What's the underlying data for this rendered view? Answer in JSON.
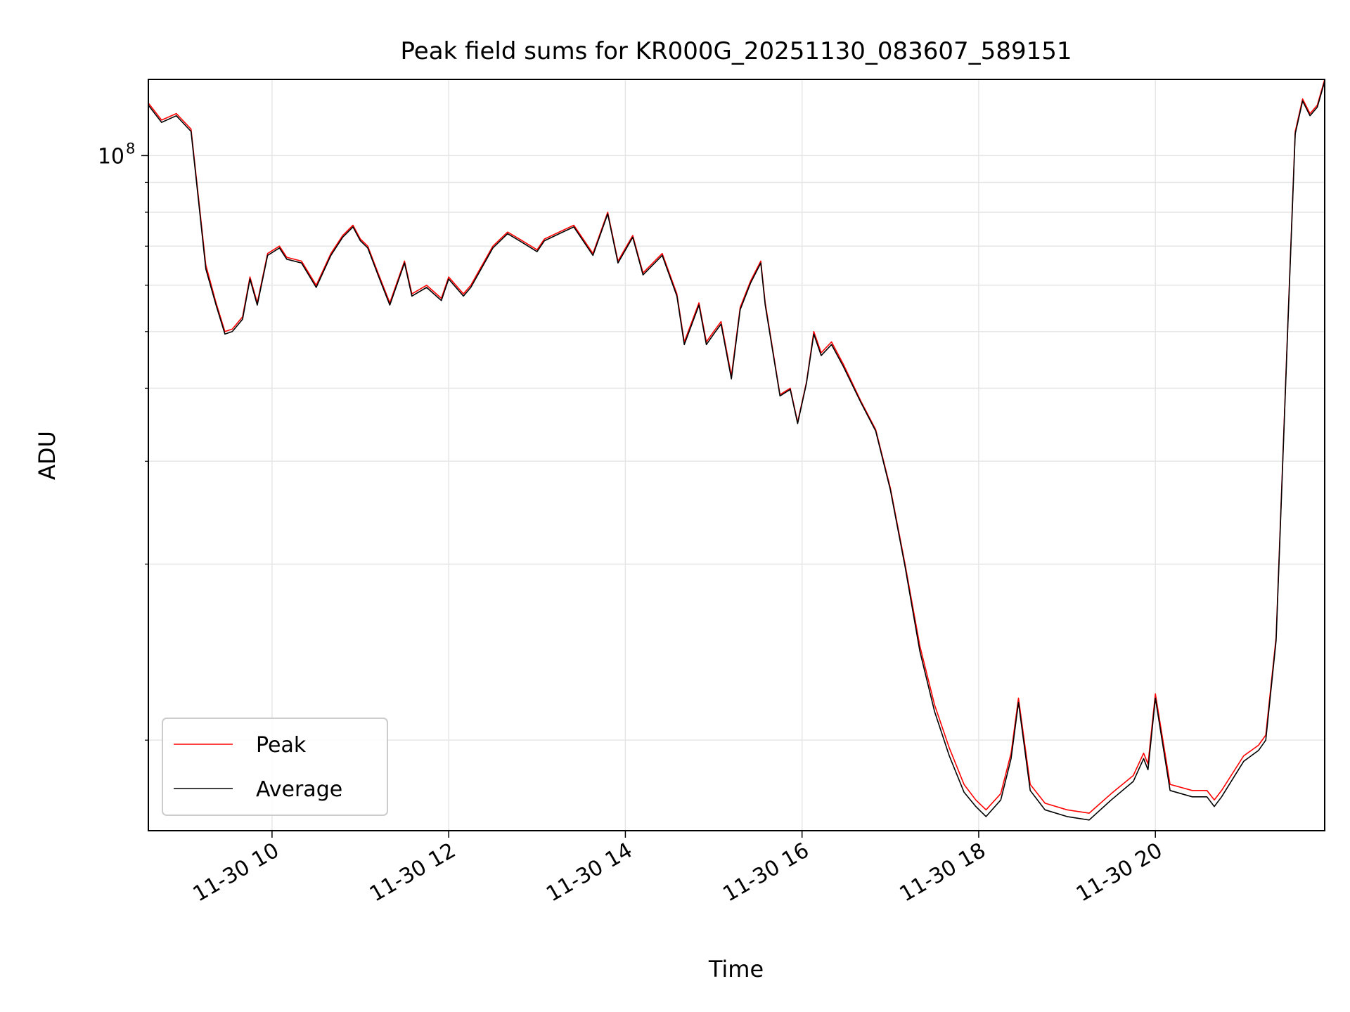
{
  "chart_data": {
    "type": "line",
    "title": "Peak field sums for KR000G_20251130_083607_589151",
    "xlabel": "Time",
    "ylabel": "ADU",
    "y_scale": "log",
    "grid": true,
    "legend_position": "bottom-left",
    "xlim": [
      "2025-11-30 08:36",
      "2025-11-30 21:55"
    ],
    "ylim": [
      7000000,
      135000000
    ],
    "x_ticks": [
      {
        "t": "2025-11-30 10:00",
        "label": "11-30 10"
      },
      {
        "t": "2025-11-30 12:00",
        "label": "11-30 12"
      },
      {
        "t": "2025-11-30 14:00",
        "label": "11-30 14"
      },
      {
        "t": "2025-11-30 16:00",
        "label": "11-30 16"
      },
      {
        "t": "2025-11-30 18:00",
        "label": "11-30 18"
      },
      {
        "t": "2025-11-30 20:00",
        "label": "11-30 20"
      }
    ],
    "y_major_ticks": [
      {
        "value": 100000000,
        "base": "10",
        "exp": "8"
      }
    ],
    "y_minor_ticks": [
      10000000,
      20000000,
      30000000,
      40000000,
      50000000,
      60000000,
      70000000,
      80000000,
      90000000
    ],
    "x": [
      "2025-11-30 08:36",
      "2025-11-30 08:45",
      "2025-11-30 08:55",
      "2025-11-30 09:05",
      "2025-11-30 09:10",
      "2025-11-30 09:15",
      "2025-11-30 09:22",
      "2025-11-30 09:28",
      "2025-11-30 09:33",
      "2025-11-30 09:40",
      "2025-11-30 09:45",
      "2025-11-30 09:50",
      "2025-11-30 09:57",
      "2025-11-30 10:05",
      "2025-11-30 10:10",
      "2025-11-30 10:20",
      "2025-11-30 10:30",
      "2025-11-30 10:40",
      "2025-11-30 10:48",
      "2025-11-30 10:55",
      "2025-11-30 11:00",
      "2025-11-30 11:05",
      "2025-11-30 11:12",
      "2025-11-30 11:20",
      "2025-11-30 11:30",
      "2025-11-30 11:35",
      "2025-11-30 11:45",
      "2025-11-30 11:55",
      "2025-11-30 12:00",
      "2025-11-30 12:10",
      "2025-11-30 12:15",
      "2025-11-30 12:30",
      "2025-11-30 12:40",
      "2025-11-30 12:48",
      "2025-11-30 13:00",
      "2025-11-30 13:05",
      "2025-11-30 13:15",
      "2025-11-30 13:25",
      "2025-11-30 13:38",
      "2025-11-30 13:48",
      "2025-11-30 13:55",
      "2025-11-30 14:05",
      "2025-11-30 14:12",
      "2025-11-30 14:25",
      "2025-11-30 14:35",
      "2025-11-30 14:40",
      "2025-11-30 14:50",
      "2025-11-30 14:55",
      "2025-11-30 15:00",
      "2025-11-30 15:05",
      "2025-11-30 15:12",
      "2025-11-30 15:18",
      "2025-11-30 15:25",
      "2025-11-30 15:32",
      "2025-11-30 15:35",
      "2025-11-30 15:45",
      "2025-11-30 15:52",
      "2025-11-30 15:57",
      "2025-11-30 16:03",
      "2025-11-30 16:08",
      "2025-11-30 16:13",
      "2025-11-30 16:20",
      "2025-11-30 16:28",
      "2025-11-30 16:40",
      "2025-11-30 16:50",
      "2025-11-30 17:00",
      "2025-11-30 17:10",
      "2025-11-30 17:20",
      "2025-11-30 17:30",
      "2025-11-30 17:40",
      "2025-11-30 17:50",
      "2025-11-30 17:58",
      "2025-11-30 18:05",
      "2025-11-30 18:15",
      "2025-11-30 18:22",
      "2025-11-30 18:27",
      "2025-11-30 18:35",
      "2025-11-30 18:45",
      "2025-11-30 19:00",
      "2025-11-30 19:15",
      "2025-11-30 19:30",
      "2025-11-30 19:45",
      "2025-11-30 19:52",
      "2025-11-30 19:55",
      "2025-11-30 20:00",
      "2025-11-30 20:10",
      "2025-11-30 20:25",
      "2025-11-30 20:35",
      "2025-11-30 20:40",
      "2025-11-30 20:45",
      "2025-11-30 21:00",
      "2025-11-30 21:10",
      "2025-11-30 21:15",
      "2025-11-30 21:22",
      "2025-11-30 21:30",
      "2025-11-30 21:35",
      "2025-11-30 21:40",
      "2025-11-30 21:45",
      "2025-11-30 21:50",
      "2025-11-30 21:55"
    ],
    "series": [
      {
        "name": "Peak",
        "color": "#ff0000",
        "values": [
          123000000,
          115000000,
          118000000,
          111000000,
          85000000,
          65000000,
          56000000,
          50000000,
          50500000,
          53000000,
          62000000,
          56000000,
          68000000,
          70000000,
          67000000,
          66000000,
          60000000,
          68000000,
          73000000,
          76000000,
          72000000,
          70000000,
          63000000,
          56000000,
          66000000,
          58000000,
          60000000,
          57000000,
          62000000,
          58000000,
          60000000,
          70000000,
          74000000,
          72000000,
          69000000,
          72000000,
          74000000,
          76000000,
          68000000,
          80000000,
          66000000,
          73000000,
          63000000,
          68000000,
          58000000,
          48000000,
          56000000,
          48000000,
          50000000,
          52000000,
          42000000,
          55000000,
          61000000,
          66000000,
          56000000,
          39000000,
          40000000,
          35000000,
          41000000,
          50000000,
          46000000,
          48000000,
          44000000,
          38000000,
          34000000,
          27000000,
          20000000,
          14500000,
          11500000,
          9700000,
          8400000,
          7900000,
          7600000,
          8100000,
          9500000,
          11800000,
          8400000,
          7800000,
          7600000,
          7500000,
          8100000,
          8700000,
          9500000,
          9100000,
          12000000,
          8400000,
          8200000,
          8200000,
          7900000,
          8200000,
          9400000,
          9800000,
          10200000,
          15000000,
          52000000,
          110000000,
          125000000,
          118000000,
          122000000,
          135000000
        ]
      },
      {
        "name": "Average",
        "color": "#000000",
        "values": [
          122000000,
          114000000,
          117000000,
          110000000,
          84000000,
          64000000,
          55500000,
          49500000,
          50000000,
          52500000,
          61500000,
          55500000,
          67500000,
          69500000,
          66500000,
          65500000,
          59500000,
          67500000,
          72500000,
          75500000,
          71500000,
          69500000,
          62500000,
          55500000,
          65500000,
          57500000,
          59500000,
          56500000,
          61500000,
          57500000,
          59500000,
          69500000,
          73500000,
          71500000,
          68500000,
          71500000,
          73500000,
          75500000,
          67500000,
          79500000,
          65500000,
          72500000,
          62500000,
          67500000,
          57500000,
          47500000,
          55500000,
          47500000,
          49500000,
          51500000,
          41500000,
          54500000,
          60500000,
          65500000,
          55500000,
          38800000,
          39800000,
          34800000,
          40800000,
          49500000,
          45500000,
          47500000,
          43600000,
          37800000,
          33800000,
          26800000,
          19800000,
          14200000,
          11200000,
          9400000,
          8150000,
          7700000,
          7400000,
          7900000,
          9300000,
          11600000,
          8200000,
          7600000,
          7400000,
          7300000,
          7900000,
          8500000,
          9300000,
          8900000,
          11800000,
          8200000,
          8000000,
          8000000,
          7700000,
          8000000,
          9200000,
          9600000,
          10000000,
          14800000,
          51500000,
          109000000,
          124000000,
          117000000,
          121000000,
          134000000
        ]
      }
    ]
  }
}
